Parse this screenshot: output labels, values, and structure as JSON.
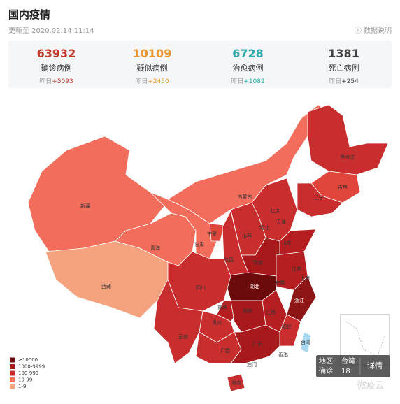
{
  "header": {
    "title": "国内疫情",
    "updated": "更新至 2020.02.14 11:14",
    "info": "数据说明"
  },
  "stats": [
    {
      "value": "63932",
      "label": "确诊病例",
      "delta_prefix": "昨日",
      "delta": "+5093"
    },
    {
      "value": "10109",
      "label": "疑似病例",
      "delta_prefix": "昨日",
      "delta": "+2450"
    },
    {
      "value": "6728",
      "label": "治愈病例",
      "delta_prefix": "昨日",
      "delta": "+1082"
    },
    {
      "value": "1381",
      "label": "死亡病例",
      "delta_prefix": "昨日",
      "delta": "+254"
    }
  ],
  "map": {
    "regions": [
      "黑龙江",
      "吉林",
      "辽宁",
      "内蒙古",
      "北京",
      "天津",
      "河北",
      "山西",
      "山东",
      "宁夏",
      "甘肃",
      "青海",
      "新疆",
      "西藏",
      "陕西",
      "河南",
      "江苏",
      "湖北",
      "安徽",
      "上海",
      "四川",
      "重庆",
      "浙江",
      "湖南",
      "江西",
      "贵州",
      "福建",
      "云南",
      "广西",
      "广东",
      "台湾",
      "香港",
      "澳门",
      "海南"
    ],
    "legend": [
      "≥10000",
      "1000-9999",
      "100-999",
      "10-99",
      "1-9"
    ],
    "tooltip": {
      "region_label": "地区:",
      "region": "台湾",
      "count_label": "确诊:",
      "count": "18",
      "action": "详情"
    },
    "watermark": "微疫云"
  }
}
